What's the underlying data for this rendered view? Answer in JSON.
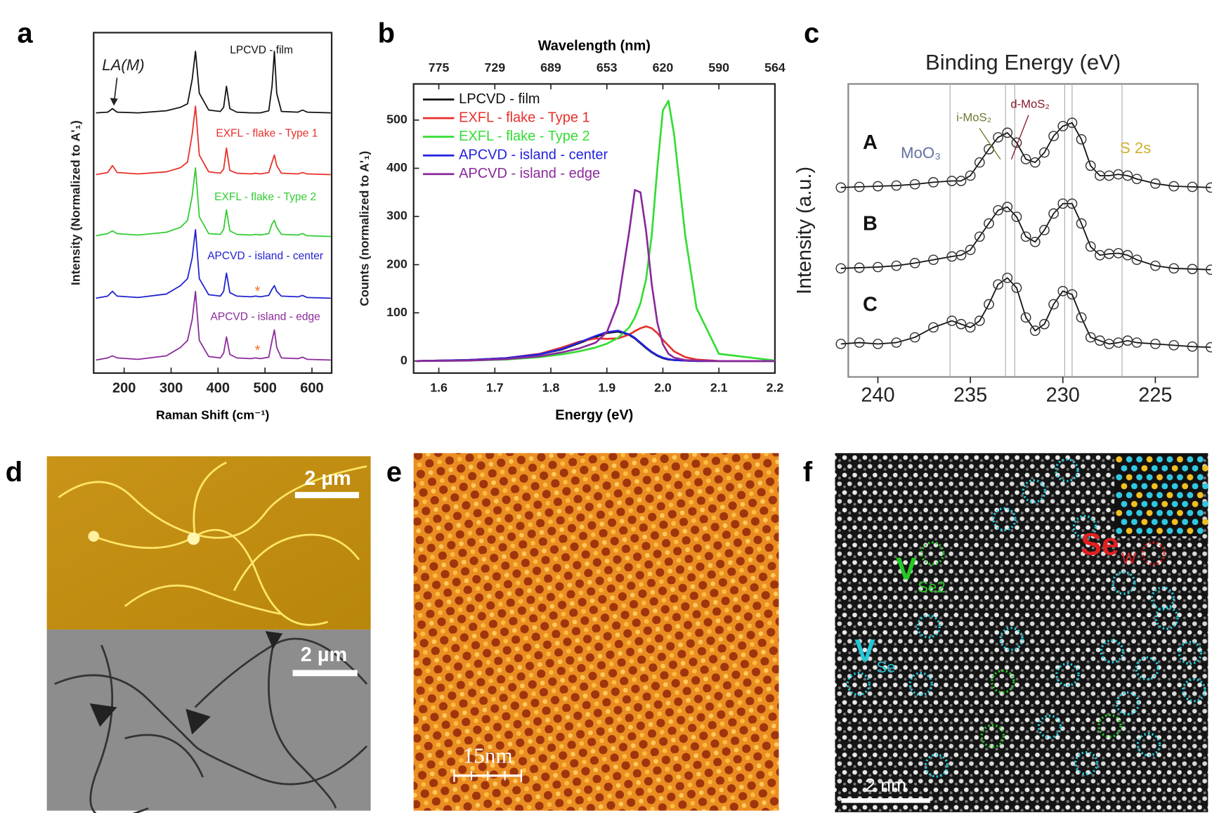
{
  "panel_labels": [
    "a",
    "b",
    "c",
    "d",
    "e",
    "f"
  ],
  "chart_data": [
    {
      "type": "line",
      "x_label": "Raman Shift (cm⁻¹)",
      "y_label": "Intensity (Normalized to A'₁)",
      "annotations": [
        "LA(M)",
        "*",
        "*"
      ],
      "xlim": [
        135,
        642
      ],
      "xticks": [
        200,
        300,
        400,
        500,
        600
      ],
      "x": [
        140,
        165,
        175,
        185,
        230,
        290,
        320,
        335,
        345,
        352,
        360,
        380,
        405,
        412,
        418,
        425,
        440,
        470,
        480,
        490,
        508,
        515,
        520,
        525,
        535,
        570,
        580,
        590,
        640
      ],
      "series": [
        {
          "name": "LPCVD - film",
          "color": "#111111",
          "values": [
            0.02,
            0.03,
            0.08,
            0.03,
            0.02,
            0.05,
            0.1,
            0.15,
            0.5,
            0.9,
            0.3,
            0.06,
            0.04,
            0.1,
            0.4,
            0.08,
            0.03,
            0.02,
            0.02,
            0.02,
            0.05,
            0.4,
            0.9,
            0.3,
            0.04,
            0.03,
            0.06,
            0.03,
            0.02
          ]
        },
        {
          "name": "EXFL - flake - Type 1",
          "color": "#e8302a",
          "values": [
            0.02,
            0.05,
            0.15,
            0.05,
            0.03,
            0.06,
            0.12,
            0.2,
            0.6,
            1.0,
            0.3,
            0.06,
            0.04,
            0.1,
            0.4,
            0.08,
            0.04,
            0.03,
            0.04,
            0.03,
            0.05,
            0.2,
            0.3,
            0.15,
            0.04,
            0.03,
            0.05,
            0.03,
            0.02
          ]
        },
        {
          "name": "EXFL - flake - Type 2",
          "color": "#33cc33",
          "values": [
            0.03,
            0.06,
            0.1,
            0.06,
            0.04,
            0.08,
            0.15,
            0.25,
            0.6,
            1.0,
            0.3,
            0.06,
            0.05,
            0.12,
            0.4,
            0.1,
            0.05,
            0.04,
            0.05,
            0.04,
            0.06,
            0.2,
            0.25,
            0.15,
            0.05,
            0.04,
            0.06,
            0.03,
            0.02
          ]
        },
        {
          "name": "APCVD - island - center",
          "color": "#2222d0",
          "values": [
            0.02,
            0.05,
            0.12,
            0.05,
            0.03,
            0.08,
            0.2,
            0.3,
            0.6,
            1.0,
            0.3,
            0.07,
            0.05,
            0.12,
            0.38,
            0.1,
            0.05,
            0.04,
            0.05,
            0.04,
            0.06,
            0.15,
            0.2,
            0.12,
            0.05,
            0.04,
            0.06,
            0.03,
            0.02
          ]
        },
        {
          "name": "APCVD - island - edge",
          "color": "#8a2a9a",
          "values": [
            0.02,
            0.05,
            0.08,
            0.05,
            0.03,
            0.08,
            0.2,
            0.3,
            0.6,
            1.0,
            0.3,
            0.07,
            0.05,
            0.12,
            0.35,
            0.1,
            0.05,
            0.04,
            0.05,
            0.04,
            0.06,
            0.3,
            0.45,
            0.2,
            0.05,
            0.04,
            0.06,
            0.03,
            0.02
          ]
        }
      ]
    },
    {
      "type": "line",
      "x_label": "Energy (eV)",
      "y_label": "Counts (normalized to A'₁)",
      "x2_label": "Wavelength (nm)",
      "legend": "upper left",
      "xlim": [
        1.555,
        2.2
      ],
      "xticks": [
        1.6,
        1.7,
        1.8,
        1.9,
        {
          "value": 2,
          "label": "2.0"
        },
        2.1,
        2.2
      ],
      "x2ticks": [
        {
          "value": 1.6,
          "label": "775"
        },
        {
          "value": 1.7,
          "label": "729"
        },
        {
          "value": 1.8,
          "label": "689"
        },
        {
          "value": 1.9,
          "label": "653"
        },
        {
          "value": 2,
          "label": "620"
        },
        {
          "value": 2.1,
          "label": "590"
        },
        {
          "value": 2.2,
          "label": "564"
        }
      ],
      "ylim": [
        -25,
        575
      ],
      "yticks": [
        0,
        100,
        200,
        300,
        400,
        500
      ],
      "x": [
        1.56,
        1.65,
        1.72,
        1.78,
        1.82,
        1.85,
        1.88,
        1.9,
        1.92,
        1.94,
        1.95,
        1.96,
        1.97,
        1.98,
        1.99,
        2.0,
        2.01,
        2.02,
        2.04,
        2.06,
        2.1,
        2.2
      ],
      "series": [
        {
          "name": "LPCVD - film",
          "color": "#111111",
          "values": [
            0,
            2,
            6,
            14,
            24,
            37,
            50,
            58,
            61,
            54,
            47,
            37,
            27,
            18,
            11,
            6,
            3,
            2,
            1,
            0,
            0,
            0
          ]
        },
        {
          "name": "EXFL - flake - Type 1",
          "color": "#e8302a",
          "values": [
            0,
            2,
            6,
            15,
            28,
            40,
            47,
            46,
            47,
            55,
            62,
            68,
            72,
            68,
            58,
            44,
            32,
            20,
            8,
            3,
            0,
            0
          ]
        },
        {
          "name": "EXFL - flake - Type 2",
          "color": "#33dd33",
          "values": [
            0,
            1,
            3,
            8,
            14,
            20,
            28,
            36,
            48,
            70,
            90,
            120,
            170,
            260,
            400,
            520,
            540,
            470,
            260,
            110,
            15,
            1
          ]
        },
        {
          "name": "APCVD - island - center",
          "color": "#2222e0",
          "values": [
            0,
            2,
            6,
            14,
            25,
            38,
            52,
            60,
            63,
            55,
            48,
            38,
            28,
            19,
            12,
            7,
            4,
            2,
            1,
            0,
            0,
            0
          ]
        },
        {
          "name": "APCVD - island - edge",
          "color": "#8a2a9a",
          "values": [
            0,
            1,
            4,
            10,
            18,
            26,
            38,
            60,
            120,
            270,
            355,
            350,
            270,
            160,
            80,
            35,
            15,
            7,
            2,
            1,
            0,
            0
          ]
        }
      ]
    },
    {
      "type": "line",
      "markers": true,
      "title": "Binding Energy (eV)",
      "y_label": "Intensity (a.u.)",
      "annotations": [
        "MoO₃",
        "i-MoS₂",
        "d-MoS₂",
        "S 2s"
      ],
      "reference_lines": [
        236.1,
        233.1,
        232.6,
        229.9,
        229.5,
        226.8
      ],
      "xlim": [
        241.6,
        222.7
      ],
      "xticks": [
        240,
        235,
        230,
        225
      ],
      "x": [
        242,
        241,
        240,
        239,
        238,
        237,
        236,
        235.5,
        235,
        234.5,
        234,
        233.5,
        233,
        232.5,
        232,
        231.5,
        231,
        230.5,
        230,
        229.5,
        229,
        228.5,
        228,
        227.5,
        227,
        226.5,
        226,
        225,
        224,
        223,
        222
      ],
      "series": [
        {
          "name": "A",
          "color": "#111111",
          "values": [
            0.02,
            0.03,
            0.04,
            0.05,
            0.07,
            0.1,
            0.12,
            0.12,
            0.2,
            0.4,
            0.6,
            0.78,
            0.85,
            0.7,
            0.45,
            0.4,
            0.55,
            0.8,
            0.95,
            1.0,
            0.75,
            0.35,
            0.2,
            0.2,
            0.22,
            0.2,
            0.15,
            0.08,
            0.04,
            0.03,
            0.02
          ]
        },
        {
          "name": "B",
          "color": "#111111",
          "values": [
            0.02,
            0.03,
            0.04,
            0.06,
            0.1,
            0.15,
            0.2,
            0.22,
            0.3,
            0.5,
            0.7,
            0.9,
            0.95,
            0.8,
            0.5,
            0.42,
            0.6,
            0.85,
            1.0,
            1.0,
            0.7,
            0.35,
            0.22,
            0.24,
            0.25,
            0.22,
            0.15,
            0.06,
            0.02,
            0.01,
            0.0
          ]
        },
        {
          "name": "C",
          "color": "#111111",
          "values": [
            0.1,
            0.12,
            0.1,
            0.12,
            0.2,
            0.35,
            0.45,
            0.4,
            0.35,
            0.45,
            0.7,
            1.0,
            1.1,
            0.95,
            0.5,
            0.3,
            0.4,
            0.7,
            0.9,
            0.85,
            0.5,
            0.2,
            0.15,
            0.1,
            0.12,
            0.15,
            0.12,
            0.1,
            0.08,
            0.06,
            0.05
          ]
        }
      ]
    }
  ],
  "images": {
    "d": {
      "scale_bars": [
        "2 µm",
        "2 µm"
      ]
    },
    "e": {
      "scale_bar": "15nm"
    },
    "f": {
      "scale_bar": "2 nm",
      "defect_labels": [
        {
          "text": "V",
          "sub": "Se2"
        },
        {
          "text": "V",
          "sub": "Se"
        },
        {
          "text": "Se",
          "sub": "W"
        }
      ]
    }
  }
}
